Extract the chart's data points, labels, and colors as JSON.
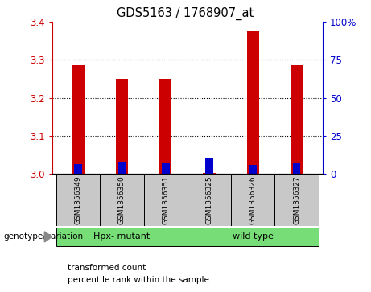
{
  "title": "GDS5163 / 1768907_at",
  "samples": [
    "GSM1356349",
    "GSM1356350",
    "GSM1356351",
    "GSM1356325",
    "GSM1356326",
    "GSM1356327"
  ],
  "red_values": [
    3.285,
    3.25,
    3.25,
    3.002,
    3.375,
    3.285
  ],
  "blue_values": [
    6.5,
    8.0,
    7.0,
    10.0,
    6.0,
    7.0
  ],
  "ylim_left": [
    3.0,
    3.4
  ],
  "ylim_right": [
    0,
    100
  ],
  "yticks_left": [
    3.0,
    3.1,
    3.2,
    3.3,
    3.4
  ],
  "yticks_right": [
    0,
    25,
    50,
    75,
    100
  ],
  "ytick_labels_right": [
    "0",
    "25",
    "50",
    "75",
    "100%"
  ],
  "left_color": "#cc0000",
  "right_color": "#0000cc",
  "red_bar_width": 0.28,
  "blue_bar_width": 0.18,
  "group1_label": "Hpx- mutant",
  "group2_label": "wild type",
  "group_color": "#77dd77",
  "genotype_label": "genotype/variation",
  "legend_items": [
    "transformed count",
    "percentile rank within the sample"
  ],
  "legend_colors": [
    "#cc0000",
    "#0000cc"
  ],
  "plot_bg": "#ffffff",
  "sample_box_color": "#c8c8c8",
  "fig_bg": "#ffffff",
  "grid_yticks": [
    3.1,
    3.2,
    3.3
  ]
}
